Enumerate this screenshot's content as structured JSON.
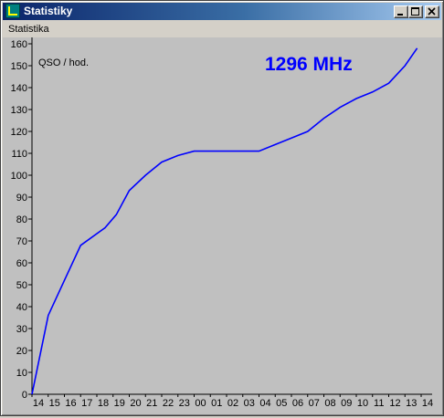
{
  "window": {
    "title": "Statistiky",
    "minimize_icon": "minimize-icon",
    "maximize_icon": "maximize-icon",
    "close_icon": "close-icon"
  },
  "menu": {
    "items": [
      {
        "label": "Statistika"
      }
    ]
  },
  "chart_data": {
    "type": "line",
    "title": "1296 MHz",
    "ylabel": "QSO / hod.",
    "xlabel": "",
    "categories": [
      "14",
      "15",
      "16",
      "17",
      "18",
      "19",
      "20",
      "21",
      "22",
      "23",
      "00",
      "01",
      "02",
      "03",
      "04",
      "05",
      "06",
      "07",
      "08",
      "09",
      "10",
      "11",
      "12",
      "13",
      "14"
    ],
    "y_ticks": [
      0,
      10,
      20,
      30,
      40,
      50,
      60,
      70,
      80,
      90,
      100,
      110,
      120,
      130,
      140,
      150,
      160
    ],
    "ylim": [
      0,
      160
    ],
    "grid": false,
    "line_color": "#0000ff",
    "series": [
      {
        "x": [
          0,
          1,
          2,
          3,
          4.5,
          5.2,
          6,
          7,
          8,
          9,
          10,
          11,
          12,
          13,
          14,
          15,
          16,
          17,
          18,
          19,
          20,
          21,
          22,
          23
        ],
        "values": [
          0,
          36,
          52,
          68,
          76,
          82,
          93,
          100,
          106,
          109,
          111,
          111,
          111,
          111,
          111,
          114,
          117,
          120,
          126,
          131,
          135,
          138,
          142,
          150
        ]
      }
    ],
    "series_end": {
      "x": 23.75,
      "value": 158
    }
  }
}
